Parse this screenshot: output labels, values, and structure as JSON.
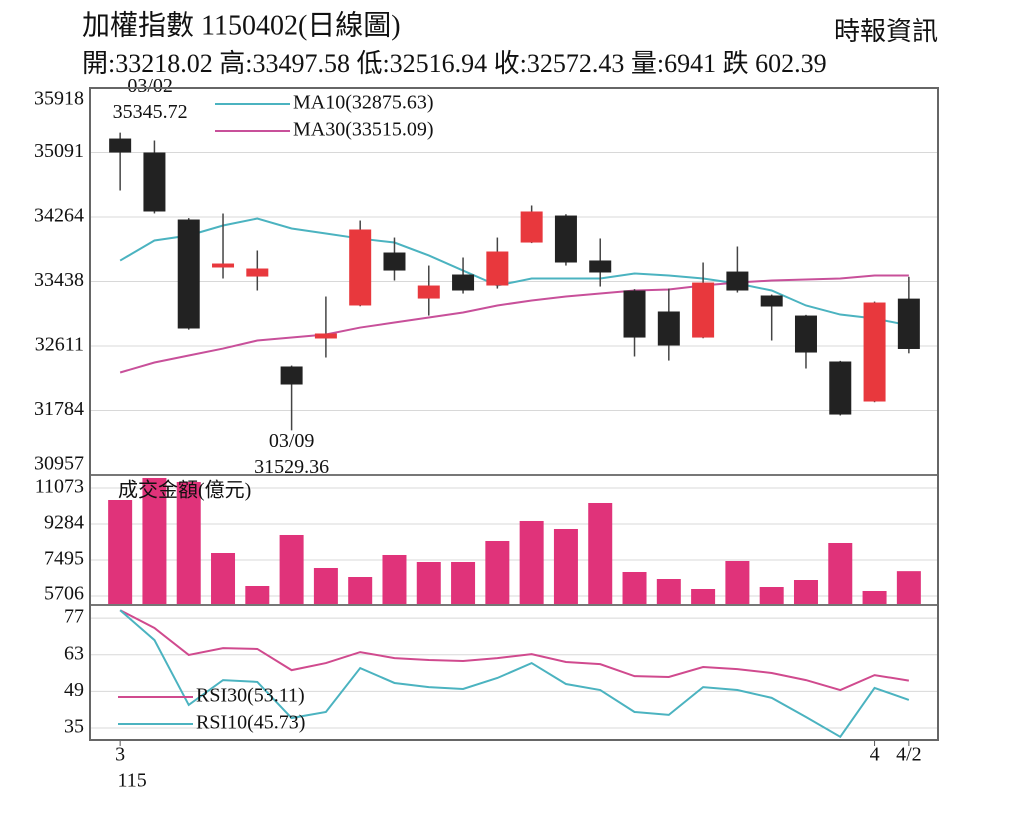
{
  "header": {
    "title": "加權指數 1150402(日線圖)",
    "source": "時報資訊",
    "stats": "開:33218.02 高:33497.58 低:32516.94 收:32572.43 量:6941 跌 602.39"
  },
  "chart_data": [
    {
      "type": "candlestick",
      "up_color": "#e8383d",
      "down_color": "#222222",
      "open": [
        35270,
        35091,
        34232,
        33617,
        33501,
        32348,
        32707,
        33130,
        33809,
        33219,
        33527,
        33386,
        33937,
        34283,
        33707,
        33322,
        33053,
        32719,
        33565,
        33258,
        33001,
        32412,
        31899,
        33218.02
      ],
      "high": [
        35345.72,
        35245,
        34250,
        34309,
        33835,
        32360,
        33245,
        34219,
        34001,
        33642,
        33745,
        34001,
        34412,
        34300,
        33989,
        33340,
        33347,
        33681,
        33886,
        33270,
        33010,
        32420,
        33180,
        33497.58
      ],
      "low": [
        34604,
        34310,
        32820,
        33476,
        33322,
        31529.36,
        32463,
        33120,
        33450,
        33001,
        33283,
        33347,
        33930,
        33642,
        33373,
        32476,
        32424,
        32710,
        33296,
        32681,
        32322,
        31720,
        31890,
        32516.94
      ],
      "close": [
        35091,
        34335,
        32835,
        33668,
        33604,
        32117,
        32771,
        34104,
        33578,
        33386,
        33322,
        33822,
        34335,
        33681,
        33553,
        32719,
        32617,
        33424,
        33322,
        33117,
        32527,
        31732,
        33168,
        32572.43
      ],
      "series": [
        {
          "name": "MA10(32875.63)",
          "color": "#4bb3c0",
          "values": [
            33706,
            33963,
            34027,
            34155,
            34245,
            34117,
            34053,
            33988,
            33937,
            33771,
            33578,
            33386,
            33476,
            33476,
            33476,
            33540,
            33514,
            33476,
            33412,
            33322,
            33130,
            33014,
            32963,
            32875.63
          ]
        },
        {
          "name": "MA30(33515.09)",
          "color": "#c8509a",
          "values": [
            32271,
            32399,
            32489,
            32578,
            32681,
            32719,
            32758,
            32847,
            32912,
            32976,
            33040,
            33130,
            33194,
            33245,
            33283,
            33322,
            33335,
            33386,
            33424,
            33450,
            33463,
            33476,
            33514,
            33515.09
          ]
        }
      ],
      "high_label": {
        "date": "03/02",
        "value": 35345.72
      },
      "low_label": {
        "date": "03/09",
        "value": 31529.36
      },
      "ylim": [
        30957,
        35918
      ],
      "yticks": [
        35918,
        35091,
        34264,
        33438,
        32611,
        31784,
        30957
      ],
      "grid": true,
      "legend": "upper left"
    },
    {
      "type": "bar",
      "title": "成交金額(億元)",
      "color": "#e0337a",
      "values": [
        10477,
        11571,
        11372,
        7843,
        6203,
        8738,
        7098,
        6650,
        7744,
        7396,
        7396,
        8440,
        9434,
        9036,
        10328,
        6899,
        6551,
        6054,
        7446,
        6153,
        6501,
        8340,
        5955,
        6941
      ],
      "ylim": [
        5259,
        11719
      ],
      "yticks": [
        11073,
        9284,
        7495,
        5706
      ],
      "grid": true
    },
    {
      "type": "line",
      "categories": [
        "3",
        null,
        null,
        null,
        null,
        null,
        null,
        null,
        null,
        null,
        null,
        null,
        null,
        null,
        null,
        null,
        null,
        null,
        null,
        null,
        null,
        null,
        "4",
        "4/2"
      ],
      "x_sublabel": "115",
      "series": [
        {
          "name": "RSI30(53.11)",
          "color": "#d04a8e",
          "values": [
            80.0,
            73.2,
            62.9,
            65.5,
            65.2,
            57.1,
            59.8,
            64.0,
            61.7,
            61.0,
            60.6,
            61.7,
            63.2,
            60.2,
            59.4,
            54.8,
            54.5,
            58.3,
            57.5,
            56.0,
            53.3,
            49.5,
            55.2,
            53.11
          ]
        },
        {
          "name": "RSI10(45.73)",
          "color": "#4bb3c0",
          "values": [
            80.0,
            68.6,
            43.8,
            53.3,
            52.6,
            38.8,
            41.1,
            57.9,
            52.2,
            50.6,
            49.9,
            54.1,
            59.8,
            51.8,
            49.5,
            41.1,
            40.0,
            50.6,
            49.5,
            46.5,
            39.2,
            31.6,
            50.3,
            45.73
          ]
        }
      ],
      "ylim": [
        30.4,
        82
      ],
      "yticks": [
        77,
        63,
        49,
        35
      ],
      "grid": true,
      "legend": "lower left"
    }
  ]
}
